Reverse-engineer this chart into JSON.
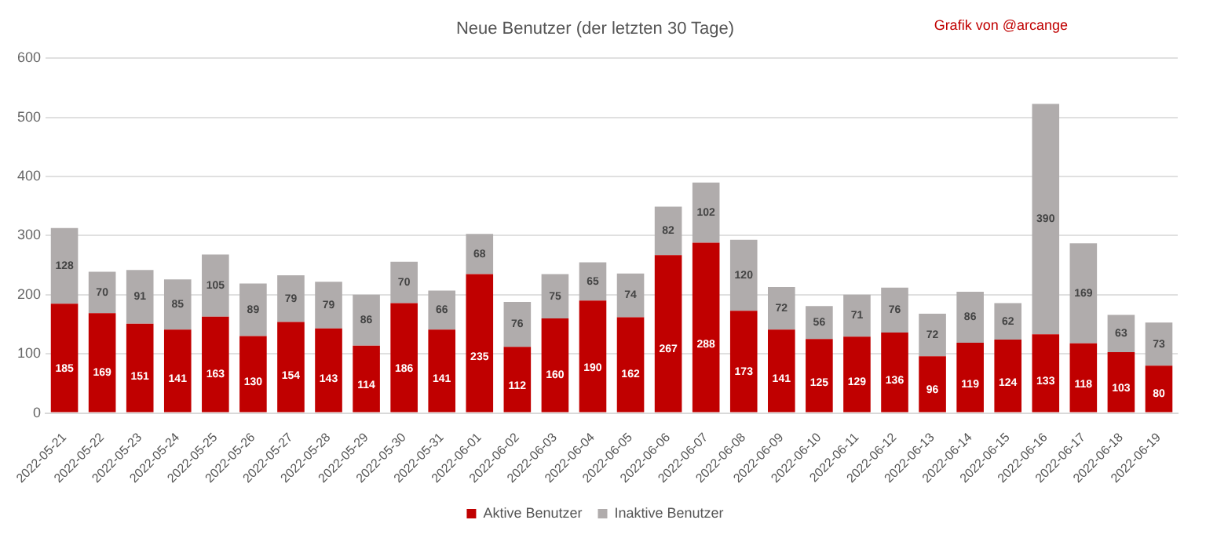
{
  "chart_data": {
    "type": "bar",
    "title": "Neue Benutzer (der letzten 30 Tage)",
    "annotations": [
      "Grafik von @arcange"
    ],
    "categories": [
      "2022-05-21",
      "2022-05-22",
      "2022-05-23",
      "2022-05-24",
      "2022-05-25",
      "2022-05-26",
      "2022-05-27",
      "2022-05-28",
      "2022-05-29",
      "2022-05-30",
      "2022-05-31",
      "2022-06-01",
      "2022-06-02",
      "2022-06-03",
      "2022-06-04",
      "2022-06-05",
      "2022-06-06",
      "2022-06-07",
      "2022-06-08",
      "2022-06-09",
      "2022-06-10",
      "2022-06-11",
      "2022-06-12",
      "2022-06-13",
      "2022-06-14",
      "2022-06-15",
      "2022-06-16",
      "2022-06-17",
      "2022-06-18",
      "2022-06-19"
    ],
    "series": [
      {
        "name": "Aktive Benutzer",
        "color": "#c00000",
        "values": [
          185,
          169,
          151,
          141,
          163,
          130,
          154,
          143,
          114,
          186,
          141,
          235,
          112,
          160,
          190,
          162,
          267,
          288,
          173,
          141,
          125,
          129,
          136,
          96,
          119,
          124,
          133,
          118,
          103,
          80
        ]
      },
      {
        "name": "Inaktive Benutzer",
        "color": "#b0acac",
        "values": [
          128,
          70,
          91,
          85,
          105,
          89,
          79,
          79,
          86,
          70,
          66,
          68,
          76,
          75,
          65,
          74,
          82,
          102,
          120,
          72,
          56,
          71,
          76,
          72,
          86,
          62,
          390,
          169,
          63,
          73
        ]
      }
    ],
    "stacked": true,
    "ylim": [
      0,
      600
    ],
    "yticks": [
      0,
      100,
      200,
      300,
      400,
      500,
      600
    ],
    "grid": "y",
    "legend": "bottom",
    "data_labels": true
  }
}
